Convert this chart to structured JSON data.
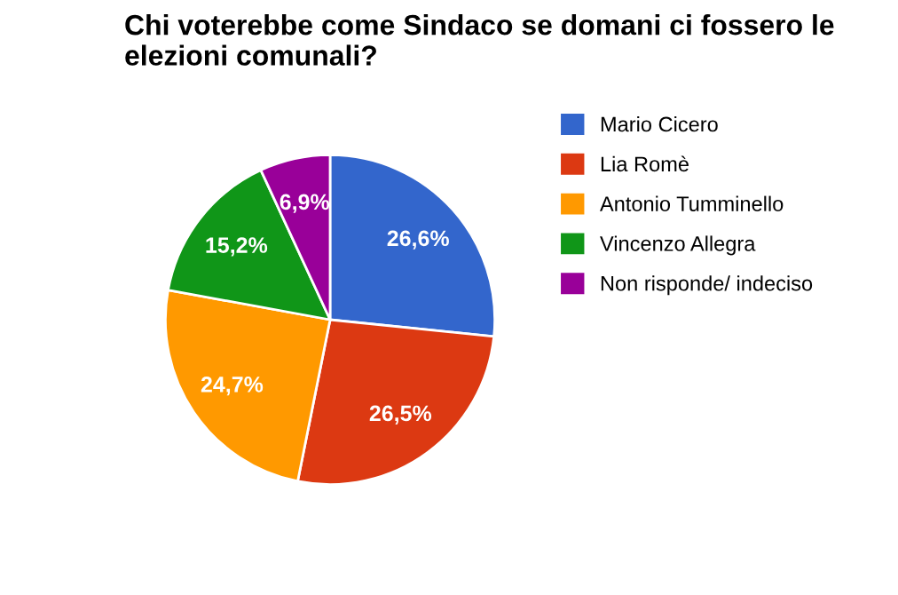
{
  "chart_data": {
    "type": "pie",
    "title": "Chi voterebbe come Sindaco se domani ci fossero le elezioni comunali?",
    "categories": [
      "Mario Cicero",
      "Lia Romè",
      "Antonio Tumminello",
      "Vincenzo Allegra",
      "Non risponde/ indeciso"
    ],
    "values": [
      26.6,
      26.5,
      24.7,
      15.2,
      6.9
    ],
    "colors": [
      "#3366cc",
      "#dc3912",
      "#ff9900",
      "#109618",
      "#990099"
    ],
    "value_labels": [
      "26,6%",
      "26,5%",
      "24,7%",
      "15,2%",
      "6,9%"
    ],
    "legend": "right"
  }
}
